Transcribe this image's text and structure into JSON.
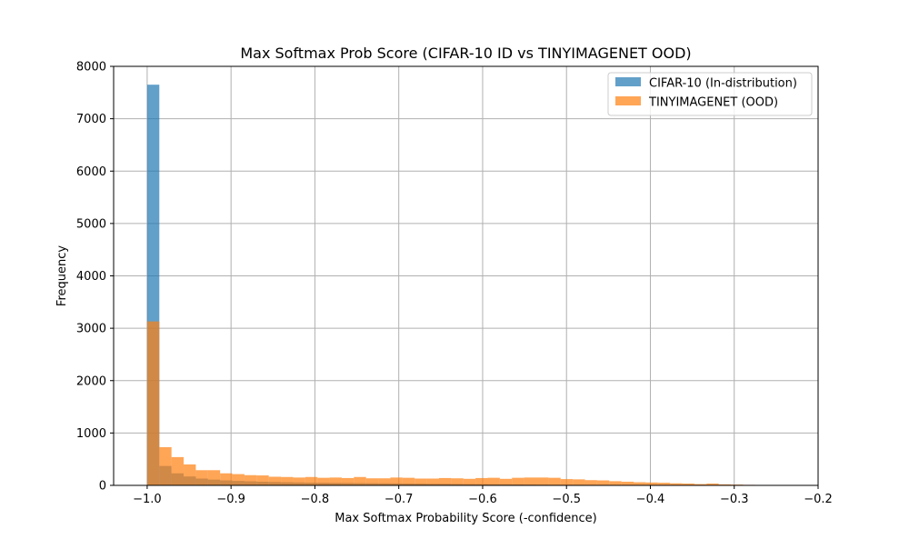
{
  "chart_data": {
    "type": "bar",
    "title": "Max Softmax Prob Score (CIFAR-10 ID vs TINYIMAGENET OOD)",
    "xlabel": "Max Softmax Probability Score (-confidence)",
    "ylabel": "Frequency",
    "xlim": [
      -1.04,
      -0.2
    ],
    "ylim": [
      0,
      8000
    ],
    "xticks": [
      -1.0,
      -0.9,
      -0.8,
      -0.7,
      -0.6,
      -0.5,
      -0.4,
      -0.3,
      -0.2
    ],
    "xtick_labels": [
      "−1.0",
      "−0.9",
      "−0.8",
      "−0.7",
      "−0.6",
      "−0.5",
      "−0.4",
      "−0.3",
      "−0.2"
    ],
    "yticks": [
      0,
      1000,
      2000,
      3000,
      4000,
      5000,
      6000,
      7000,
      8000
    ],
    "ytick_labels": [
      "0",
      "1000",
      "2000",
      "3000",
      "4000",
      "5000",
      "6000",
      "7000",
      "8000"
    ],
    "grid": true,
    "legend_position": "top-right",
    "bin_width": 0.0145,
    "series": [
      {
        "name": "CIFAR-10 (In-distribution)",
        "color": "#1f77b4",
        "opacity": 0.7,
        "bin_starts": [
          -1.0,
          -0.9855,
          -0.971,
          -0.9565,
          -0.942,
          -0.9275,
          -0.913,
          -0.8985,
          -0.884,
          -0.8695,
          -0.855,
          -0.8405,
          -0.826,
          -0.8115,
          -0.797,
          -0.7825,
          -0.768,
          -0.7535,
          -0.739,
          -0.7245,
          -0.71,
          -0.6955,
          -0.681,
          -0.6665,
          -0.652,
          -0.6375,
          -0.623,
          -0.6085,
          -0.594,
          -0.5795,
          -0.565,
          -0.5505,
          -0.536,
          -0.5215,
          -0.507,
          -0.4925,
          -0.478,
          -0.4635,
          -0.449,
          -0.4345,
          -0.42,
          -0.4055,
          -0.391,
          -0.3765,
          -0.362,
          -0.3475,
          -0.333,
          -0.3185,
          -0.304,
          -0.2895,
          -0.275
        ],
        "values": [
          7650,
          370,
          230,
          170,
          130,
          110,
          95,
          85,
          78,
          70,
          65,
          60,
          56,
          52,
          50,
          48,
          46,
          44,
          42,
          40,
          38,
          36,
          34,
          32,
          30,
          28,
          26,
          24,
          22,
          20,
          18,
          16,
          14,
          12,
          11,
          10,
          9,
          8,
          7,
          6,
          5,
          4,
          4,
          3,
          3,
          2,
          2,
          1,
          1,
          1,
          0
        ]
      },
      {
        "name": "TINYIMAGENET (OOD)",
        "color": "#ff7f0e",
        "opacity": 0.7,
        "bin_starts": [
          -1.0,
          -0.9855,
          -0.971,
          -0.9565,
          -0.942,
          -0.9275,
          -0.913,
          -0.8985,
          -0.884,
          -0.8695,
          -0.855,
          -0.8405,
          -0.826,
          -0.8115,
          -0.797,
          -0.7825,
          -0.768,
          -0.7535,
          -0.739,
          -0.7245,
          -0.71,
          -0.6955,
          -0.681,
          -0.6665,
          -0.652,
          -0.6375,
          -0.623,
          -0.6085,
          -0.594,
          -0.5795,
          -0.565,
          -0.5505,
          -0.536,
          -0.5215,
          -0.507,
          -0.4925,
          -0.478,
          -0.4635,
          -0.449,
          -0.4345,
          -0.42,
          -0.4055,
          -0.391,
          -0.3765,
          -0.362,
          -0.3475,
          -0.333,
          -0.3185,
          -0.304,
          -0.2895,
          -0.275
        ],
        "values": [
          3130,
          730,
          540,
          400,
          290,
          290,
          230,
          215,
          195,
          190,
          165,
          160,
          150,
          160,
          145,
          150,
          140,
          160,
          135,
          135,
          150,
          145,
          130,
          130,
          140,
          135,
          125,
          140,
          145,
          125,
          145,
          150,
          150,
          145,
          120,
          115,
          100,
          95,
          80,
          70,
          60,
          55,
          50,
          40,
          35,
          25,
          35,
          20,
          15,
          10,
          5
        ]
      }
    ]
  }
}
